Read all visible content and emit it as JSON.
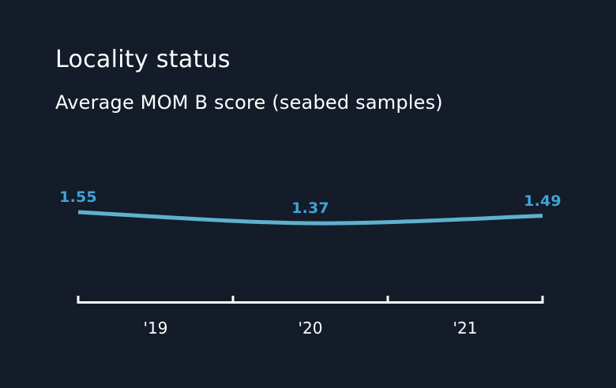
{
  "header": {
    "title": "Locality status",
    "subtitle": "Average MOM B score (seabed samples)"
  },
  "colors": {
    "background": "#131c28",
    "line": "#5fb1ce",
    "value_label": "#41a2d6",
    "axis": "#ffffff",
    "text": "#ffffff"
  },
  "chart_data": {
    "type": "line",
    "title": "Locality status",
    "subtitle": "Average MOM B score (seabed samples)",
    "series_name": "Average MOM B score (seabed samples)",
    "categories": [
      "'19",
      "'20",
      "'21"
    ],
    "values": [
      1.55,
      1.37,
      1.49
    ],
    "value_labels": [
      "1.55",
      "1.37",
      "1.49"
    ],
    "ylim": [
      1.3,
      1.6
    ],
    "grid": false,
    "legend": false,
    "y_axis_visible": false,
    "x_axis_visible": true,
    "data_label_position": "above-point"
  }
}
